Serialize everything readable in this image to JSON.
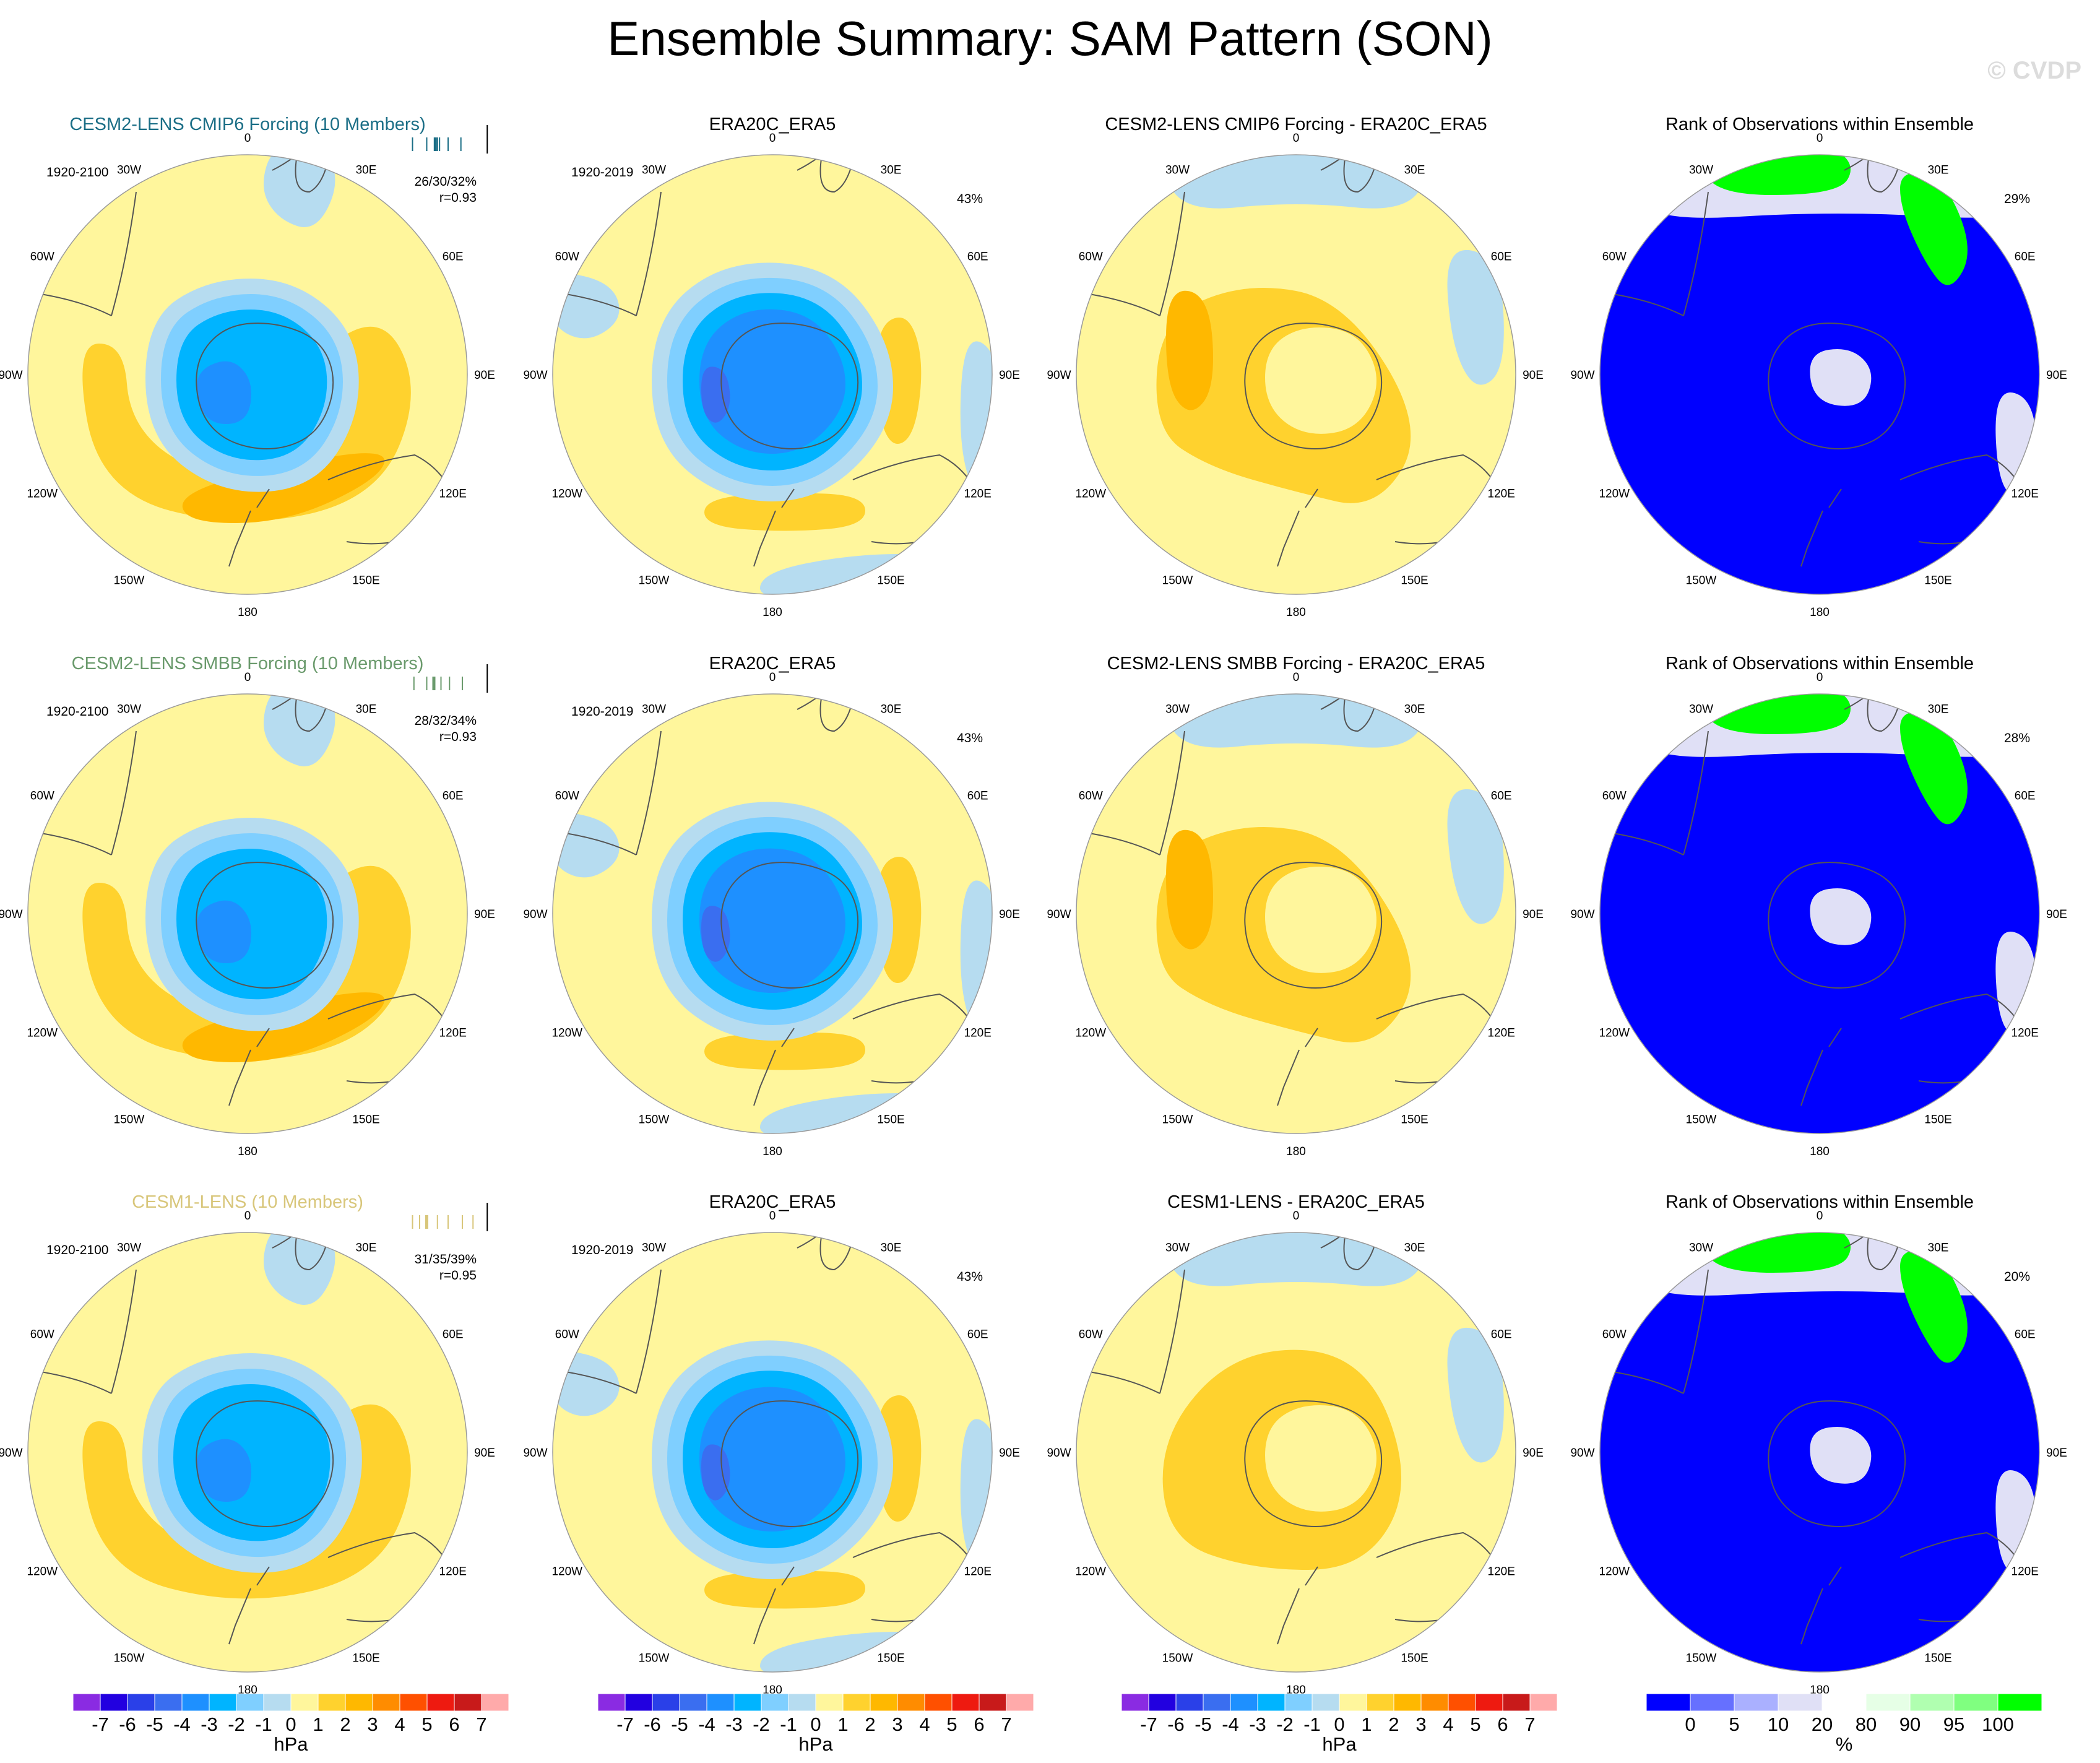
{
  "title": "Ensemble Summary: SAM Pattern (SON)",
  "watermark": "© CVDP",
  "colors": {
    "cmip6": "#1b6e86",
    "smbb": "#6a9a6c",
    "lens1": "#d8c67a",
    "coast": "#555555",
    "ring": "#9a9a9a"
  },
  "longitude_labels": [
    "0",
    "30E",
    "60E",
    "90E",
    "120E",
    "150E",
    "180",
    "150W",
    "120W",
    "90W",
    "60W",
    "30W"
  ],
  "chart_data": {
    "type": "heatmap",
    "rows": [
      {
        "panels": [
          {
            "kind": "model",
            "title": "CESM2-LENS CMIP6 Forcing (10 Members)",
            "title_color": "#1b6e86",
            "period": "1920-2100",
            "stat": "26/30/32%",
            "r": "r=0.93",
            "strength": 1.0,
            "ticks": [
              0.1,
              0.3,
              0.42,
              0.45,
              0.48,
              0.6,
              0.78
            ]
          },
          {
            "kind": "obs",
            "title": "ERA20C_ERA5",
            "period": "1920-2019",
            "stat": "43%",
            "strength": 1.25
          },
          {
            "kind": "diff",
            "title": "CESM2-LENS CMIP6 Forcing - ERA20C_ERA5",
            "strength": 1.0
          },
          {
            "kind": "rank",
            "title": "Rank of Observations within Ensemble",
            "stat": "29%"
          }
        ]
      },
      {
        "panels": [
          {
            "kind": "model",
            "title": "CESM2-LENS SMBB Forcing (10 Members)",
            "title_color": "#6a9a6c",
            "period": "1920-2100",
            "stat": "28/32/34%",
            "r": "r=0.93",
            "strength": 1.0,
            "ticks": [
              0.12,
              0.3,
              0.4,
              0.5,
              0.62,
              0.8
            ]
          },
          {
            "kind": "obs",
            "title": "ERA20C_ERA5",
            "period": "1920-2019",
            "stat": "43%",
            "strength": 1.25
          },
          {
            "kind": "diff",
            "title": "CESM2-LENS SMBB Forcing - ERA20C_ERA5",
            "strength": 1.0
          },
          {
            "kind": "rank",
            "title": "Rank of Observations within Ensemble",
            "stat": "28%"
          }
        ]
      },
      {
        "panels": [
          {
            "kind": "model",
            "title": "CESM1-LENS (10 Members)",
            "title_color": "#d8c67a",
            "period": "1920-2100",
            "stat": "31/35/39%",
            "r": "r=0.95",
            "strength": 0.85,
            "ticks": [
              0.1,
              0.2,
              0.3,
              0.45,
              0.6,
              0.8,
              0.95
            ]
          },
          {
            "kind": "obs",
            "title": "ERA20C_ERA5",
            "period": "1920-2019",
            "stat": "43%",
            "strength": 1.25
          },
          {
            "kind": "diff",
            "title": "CESM1-LENS - ERA20C_ERA5",
            "strength": 0.7
          },
          {
            "kind": "rank",
            "title": "Rank of Observations within Ensemble",
            "stat": "20%"
          }
        ]
      }
    ],
    "colorbar_hpa": {
      "unit": "hPa",
      "labels": [
        "-7",
        "-6",
        "-5",
        "-4",
        "-3",
        "-2",
        "-1",
        "0",
        "1",
        "2",
        "3",
        "4",
        "5",
        "6",
        "7"
      ],
      "colors": [
        "#8a2be2",
        "#2200e0",
        "#2a40e8",
        "#3a6ef0",
        "#1e90ff",
        "#00b4ff",
        "#7fcfff",
        "#b6dcf0",
        "#fff69c",
        "#ffd22e",
        "#ffb800",
        "#ff8c00",
        "#ff5000",
        "#ee1a10",
        "#c81a1a",
        "#ffaaaa"
      ]
    },
    "colorbar_rank": {
      "unit": "%",
      "labels": [
        "0",
        "5",
        "10",
        "20",
        "80",
        "90",
        "95",
        "100"
      ],
      "colors": [
        "#0000ff",
        "#6670ff",
        "#aab0ff",
        "#e0e0f6",
        "#ffffff",
        "#e6ffe6",
        "#b0ffb0",
        "#80ff80",
        "#00ff00"
      ]
    }
  }
}
